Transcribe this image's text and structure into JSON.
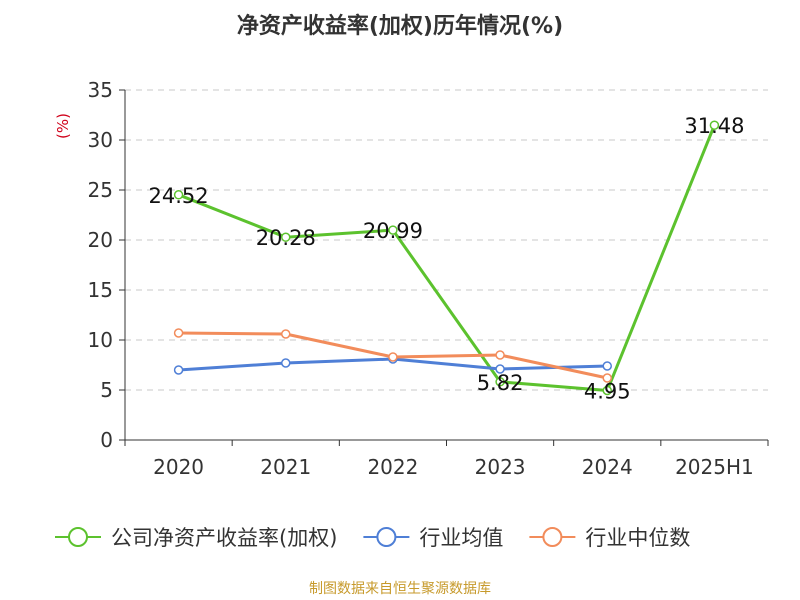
{
  "chart_data": {
    "type": "line",
    "title": "净资产收益率(加权)历年情况(%)",
    "ylabel": "(%)",
    "xlabel": "",
    "categories": [
      "2020",
      "2021",
      "2022",
      "2023",
      "2024",
      "2025H1"
    ],
    "ylim": [
      0,
      35
    ],
    "yticks": [
      0,
      5,
      10,
      15,
      20,
      25,
      30,
      35
    ],
    "grid": true,
    "legend_position": "bottom",
    "series": [
      {
        "name": "公司净资产收益率(加权)",
        "color": "#5cc22e",
        "values": [
          24.52,
          20.28,
          20.99,
          5.82,
          4.95,
          31.48
        ],
        "show_labels": true
      },
      {
        "name": "行业均值",
        "color": "#4f7fd6",
        "values": [
          7.0,
          7.7,
          8.1,
          7.1,
          7.4,
          null
        ],
        "show_labels": false
      },
      {
        "name": "行业中位数",
        "color": "#f28c5b",
        "values": [
          10.7,
          10.6,
          8.3,
          8.5,
          6.2,
          null
        ],
        "show_labels": false
      }
    ]
  },
  "source_note": "制图数据来自恒生聚源数据库"
}
